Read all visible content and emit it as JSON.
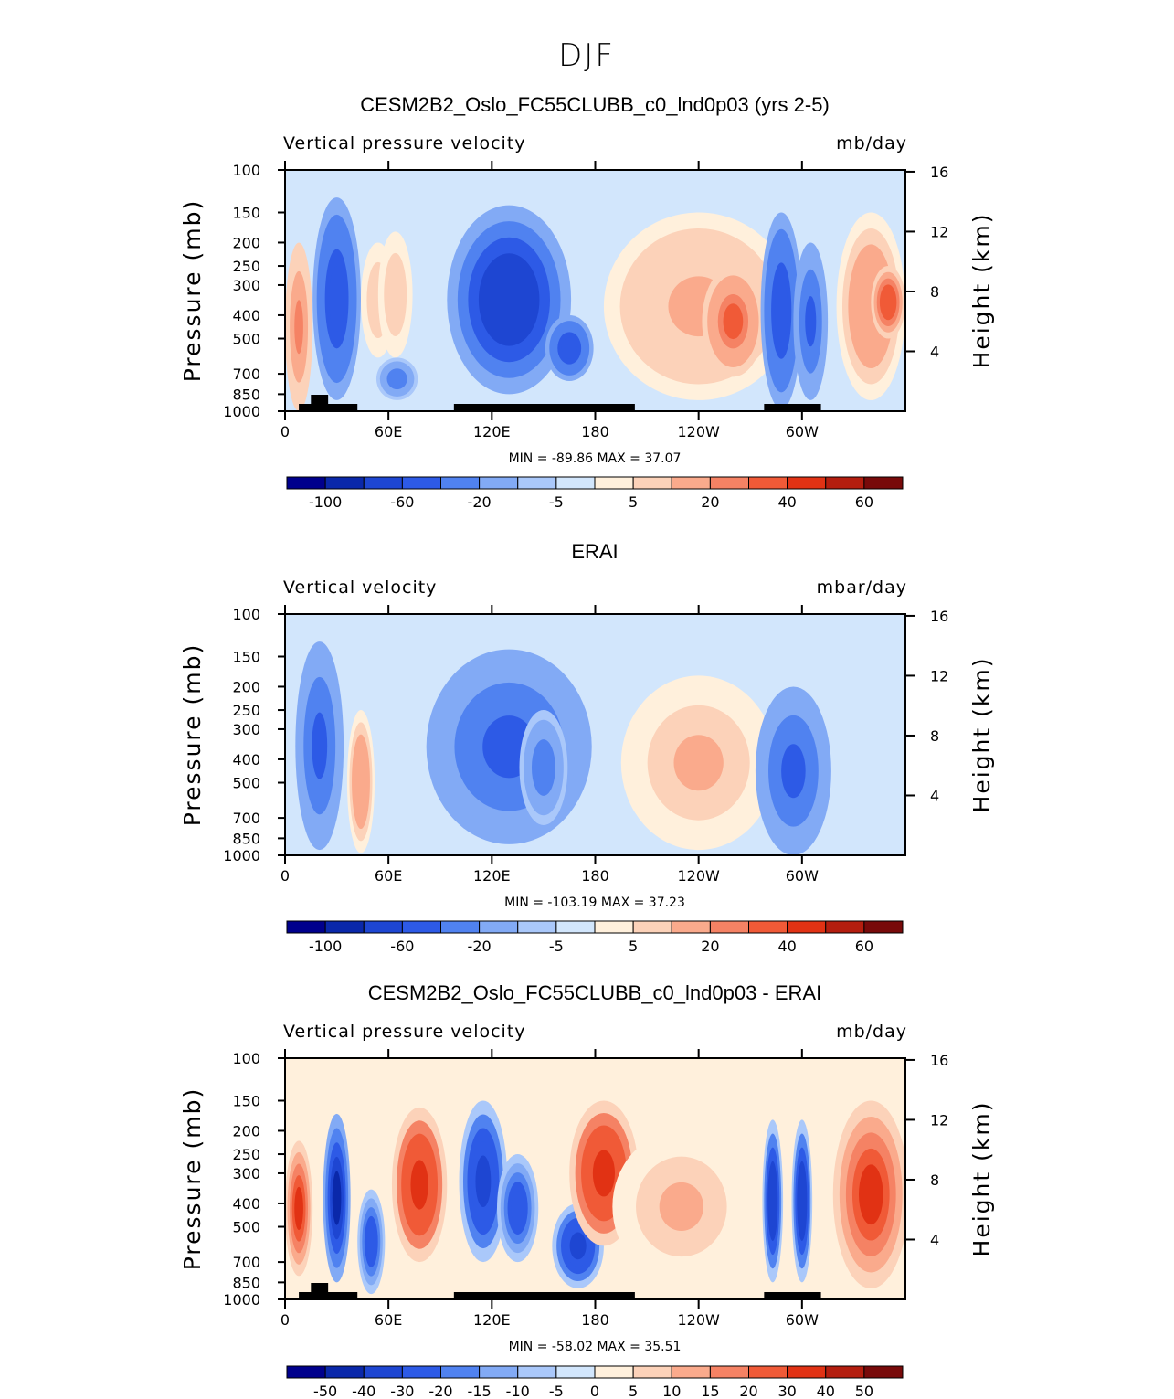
{
  "figure_title": "DJF",
  "chart_data": [
    {
      "type": "heatmap",
      "title": "CESM2B2_Oslo_FC55CLUBB_c0_lnd0p03 (yrs 2-5)",
      "left_label": "Vertical pressure velocity",
      "right_label": "mb/day",
      "ylabel": "Pressure (mb)",
      "ylabel_right": "Height (km)",
      "x_ticks": [
        "0",
        "60E",
        "120E",
        "180",
        "120W",
        "60W"
      ],
      "x_tick_values": [
        0,
        60,
        120,
        180,
        240,
        300
      ],
      "xlim": [
        0,
        360
      ],
      "y_ticks": [
        "100",
        "150",
        "200",
        "250",
        "300",
        "400",
        "500",
        "700",
        "850",
        "1000"
      ],
      "y_tick_values": [
        100,
        150,
        200,
        250,
        300,
        400,
        500,
        700,
        850,
        1000
      ],
      "ylim": [
        1000,
        100
      ],
      "height_ticks": [
        "16",
        "12",
        "8",
        "4"
      ],
      "height_tick_values": [
        16,
        12,
        8,
        4
      ],
      "min_text": "MIN = -89.86",
      "max_text": "MAX = 37.07",
      "colorbar_levels": [
        "-100",
        "-60",
        "-20",
        "-5",
        "5",
        "20",
        "40",
        "60"
      ],
      "land_mask": [
        [
          8,
          42
        ],
        [
          98,
          203
        ],
        [
          278,
          311
        ]
      ],
      "features": [
        {
          "lon": 8,
          "p_top": 200,
          "p_bot": 1000,
          "width": 8,
          "value": 20
        },
        {
          "lon": 30,
          "p_top": 130,
          "p_bot": 900,
          "width": 14,
          "value": -60
        },
        {
          "lon": 54,
          "p_top": 200,
          "p_bot": 600,
          "width": 10,
          "value": 8
        },
        {
          "lon": 64,
          "p_top": 180,
          "p_bot": 600,
          "width": 10,
          "value": 8
        },
        {
          "lon": 65,
          "p_top": 600,
          "p_bot": 900,
          "width": 12,
          "value": -30
        },
        {
          "lon": 130,
          "p_top": 140,
          "p_bot": 850,
          "width": 36,
          "value": -75
        },
        {
          "lon": 165,
          "p_top": 400,
          "p_bot": 750,
          "width": 14,
          "value": -55
        },
        {
          "lon": 240,
          "p_top": 150,
          "p_bot": 900,
          "width": 55,
          "value": 12
        },
        {
          "lon": 260,
          "p_top": 250,
          "p_bot": 720,
          "width": 18,
          "value": 30
        },
        {
          "lon": 288,
          "p_top": 150,
          "p_bot": 980,
          "width": 12,
          "value": -60
        },
        {
          "lon": 305,
          "p_top": 200,
          "p_bot": 900,
          "width": 10,
          "value": -45
        },
        {
          "lon": 340,
          "p_top": 150,
          "p_bot": 900,
          "width": 20,
          "value": 18
        },
        {
          "lon": 350,
          "p_top": 250,
          "p_bot": 500,
          "width": 10,
          "value": 38
        }
      ]
    },
    {
      "type": "heatmap",
      "title": "ERAI",
      "left_label": "Vertical velocity",
      "right_label": "mbar/day",
      "ylabel": "Pressure (mb)",
      "ylabel_right": "Height (km)",
      "x_ticks": [
        "0",
        "60E",
        "120E",
        "180",
        "120W",
        "60W"
      ],
      "x_tick_values": [
        0,
        60,
        120,
        180,
        240,
        300
      ],
      "xlim": [
        0,
        360
      ],
      "y_ticks": [
        "100",
        "150",
        "200",
        "250",
        "300",
        "400",
        "500",
        "700",
        "850",
        "1000"
      ],
      "y_tick_values": [
        100,
        150,
        200,
        250,
        300,
        400,
        500,
        700,
        850,
        1000
      ],
      "ylim": [
        1000,
        100
      ],
      "height_ticks": [
        "16",
        "12",
        "8",
        "4"
      ],
      "height_tick_values": [
        16,
        12,
        8,
        4
      ],
      "min_text": "MIN = -103.19",
      "max_text": "MAX = 37.23",
      "colorbar_levels": [
        "-100",
        "-60",
        "-20",
        "-5",
        "5",
        "20",
        "40",
        "60"
      ],
      "land_mask": [],
      "features": [
        {
          "lon": 20,
          "p_top": 130,
          "p_bot": 950,
          "width": 14,
          "value": -45
        },
        {
          "lon": 44,
          "p_top": 250,
          "p_bot": 980,
          "width": 8,
          "value": 18
        },
        {
          "lon": 130,
          "p_top": 140,
          "p_bot": 900,
          "width": 48,
          "value": -45
        },
        {
          "lon": 150,
          "p_top": 250,
          "p_bot": 750,
          "width": 14,
          "value": -25
        },
        {
          "lon": 240,
          "p_top": 180,
          "p_bot": 950,
          "width": 45,
          "value": 10
        },
        {
          "lon": 295,
          "p_top": 200,
          "p_bot": 1000,
          "width": 22,
          "value": -45
        },
        {
          "lon": 345,
          "p_top": 150,
          "p_bot": 700,
          "width": 18,
          "value": -5
        }
      ]
    },
    {
      "type": "heatmap",
      "title": "CESM2B2_Oslo_FC55CLUBB_c0_lnd0p03 - ERAI",
      "left_label": "Vertical pressure velocity",
      "right_label": "mb/day",
      "ylabel": "Pressure (mb)",
      "ylabel_right": "Height (km)",
      "x_ticks": [
        "0",
        "60E",
        "120E",
        "180",
        "120W",
        "60W"
      ],
      "x_tick_values": [
        0,
        60,
        120,
        180,
        240,
        300
      ],
      "xlim": [
        0,
        360
      ],
      "y_ticks": [
        "100",
        "150",
        "200",
        "250",
        "300",
        "400",
        "500",
        "700",
        "850",
        "1000"
      ],
      "y_tick_values": [
        100,
        150,
        200,
        250,
        300,
        400,
        500,
        700,
        850,
        1000
      ],
      "ylim": [
        1000,
        100
      ],
      "height_ticks": [
        "16",
        "12",
        "8",
        "4"
      ],
      "height_tick_values": [
        16,
        12,
        8,
        4
      ],
      "min_text": "MIN = -58.02",
      "max_text": "MAX = 35.51",
      "colorbar_levels": [
        "-50",
        "-40",
        "-30",
        "-20",
        "-15",
        "-10",
        "-5",
        "0",
        "5",
        "10",
        "15",
        "20",
        "30",
        "40",
        "50"
      ],
      "land_mask": [
        [
          8,
          42
        ],
        [
          98,
          203
        ],
        [
          278,
          311
        ]
      ],
      "features": [
        {
          "lon": 8,
          "p_top": 220,
          "p_bot": 800,
          "width": 8,
          "value": 30
        },
        {
          "lon": 30,
          "p_top": 170,
          "p_bot": 850,
          "width": 8,
          "value": -45
        },
        {
          "lon": 50,
          "p_top": 350,
          "p_bot": 950,
          "width": 8,
          "value": -25
        },
        {
          "lon": 78,
          "p_top": 160,
          "p_bot": 700,
          "width": 16,
          "value": 35
        },
        {
          "lon": 115,
          "p_top": 150,
          "p_bot": 700,
          "width": 14,
          "value": -35
        },
        {
          "lon": 135,
          "p_top": 250,
          "p_bot": 700,
          "width": 12,
          "value": -25
        },
        {
          "lon": 170,
          "p_top": 400,
          "p_bot": 900,
          "width": 15,
          "value": -35
        },
        {
          "lon": 185,
          "p_top": 150,
          "p_bot": 600,
          "width": 20,
          "value": 35
        },
        {
          "lon": 230,
          "p_top": 200,
          "p_bot": 850,
          "width": 40,
          "value": 10
        },
        {
          "lon": 283,
          "p_top": 180,
          "p_bot": 850,
          "width": 6,
          "value": -40
        },
        {
          "lon": 300,
          "p_top": 180,
          "p_bot": 850,
          "width": 6,
          "value": -40
        },
        {
          "lon": 340,
          "p_top": 150,
          "p_bot": 900,
          "width": 22,
          "value": 30
        }
      ]
    }
  ],
  "colors": {
    "frame": "#000000",
    "land": "#000000",
    "blues": [
      "#00008c",
      "#0a28aa",
      "#1e46d2",
      "#2d5ae6",
      "#5082f0",
      "#82aaf5",
      "#aac8fa",
      "#d2e6fc"
    ],
    "reds": [
      "#fff0dc",
      "#fcd2b9",
      "#faaa8c",
      "#f58264",
      "#f05a37",
      "#e13214",
      "#b41e0f",
      "#780a0a"
    ],
    "diff_blues": [
      "#00008c",
      "#0a28aa",
      "#1e46d2",
      "#2d5ae6",
      "#5082f0",
      "#82aaf5",
      "#aac8fa",
      "#d2e6fc"
    ],
    "diff_reds": [
      "#fff0dc",
      "#fcd2b9",
      "#faaa8c",
      "#f58264",
      "#f05a37",
      "#e13214",
      "#b41e0f",
      "#780a0a"
    ]
  }
}
